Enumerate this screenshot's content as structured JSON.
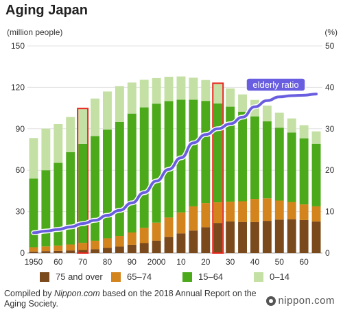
{
  "title": "Aging Japan",
  "colors": {
    "age_75_over": "#7a4a1c",
    "age_65_74": "#d4841c",
    "age_15_64": "#4caa1a",
    "age_0_14": "#c4e0a4",
    "elderly_line": "#6a5ee0",
    "highlight_box": "#e8241c",
    "grid": "#e0e0e0"
  },
  "chart_data": {
    "type": "bar",
    "stacked": true,
    "left_axis_unit": "(million people)",
    "right_axis_unit": "(%)",
    "ylim": [
      0,
      150
    ],
    "y2lim": [
      0,
      50
    ],
    "yticks": [
      "0",
      "30",
      "60",
      "90",
      "120",
      "150"
    ],
    "y2ticks": [
      "0",
      "10",
      "20",
      "30",
      "40",
      "50"
    ],
    "xticks": [
      "1950",
      "60",
      "70",
      "80",
      "90",
      "2000",
      "10",
      "20",
      "30",
      "40",
      "50",
      "60"
    ],
    "grid": true,
    "categories": [
      1950,
      1955,
      1960,
      1965,
      1970,
      1975,
      1980,
      1985,
      1990,
      1995,
      2000,
      2005,
      2010,
      2015,
      2020,
      2025,
      2030,
      2035,
      2040,
      2045,
      2050,
      2055,
      2060,
      2065
    ],
    "series": [
      {
        "name": "75 and over",
        "values": [
          1.1,
          1.4,
          1.6,
          1.9,
          2.2,
          2.8,
          3.7,
          4.7,
          6.0,
          7.2,
          9.0,
          11.6,
          14.2,
          16.3,
          18.7,
          21.8,
          22.9,
          22.5,
          22.4,
          23.3,
          24.2,
          24.5,
          23.9,
          22.8
        ]
      },
      {
        "name": "65–74",
        "values": [
          3.1,
          3.4,
          3.7,
          4.3,
          5.2,
          6.1,
          7.0,
          7.7,
          8.9,
          11.1,
          13.0,
          14.1,
          15.2,
          17.5,
          17.5,
          14.9,
          14.3,
          15.0,
          16.8,
          16.3,
          13.8,
          12.5,
          11.3,
          11.0
        ]
      },
      {
        "name": "15–64",
        "values": [
          49.7,
          55.2,
          60.0,
          66.9,
          71.6,
          75.8,
          78.8,
          82.5,
          86.1,
          87.2,
          86.2,
          84.4,
          81.7,
          77.3,
          74.0,
          71.7,
          68.8,
          64.9,
          59.8,
          55.8,
          52.8,
          50.3,
          47.9,
          45.3
        ]
      },
      {
        "name": "0–14",
        "values": [
          29.4,
          30.1,
          28.1,
          25.4,
          25.2,
          27.2,
          27.5,
          26.0,
          22.5,
          20.0,
          18.5,
          17.6,
          16.8,
          15.9,
          15.1,
          14.1,
          13.2,
          12.5,
          11.9,
          11.4,
          10.8,
          10.2,
          9.5,
          9.0
        ]
      }
    ],
    "elderly_ratio": {
      "name": "elderly ratio",
      "x": [
        1950,
        1955,
        1960,
        1965,
        1970,
        1975,
        1980,
        1985,
        1990,
        1995,
        2000,
        2005,
        2010,
        2015,
        2020,
        2025,
        2030,
        2035,
        2040,
        2045,
        2050,
        2055,
        2060,
        2065
      ],
      "values": [
        4.9,
        5.3,
        5.7,
        6.3,
        7.1,
        7.9,
        9.1,
        10.3,
        12.1,
        14.6,
        17.4,
        20.2,
        23.0,
        26.6,
        28.6,
        30.0,
        31.2,
        32.8,
        35.3,
        36.8,
        37.7,
        38.0,
        38.1,
        38.4
      ]
    },
    "highlighted_years": [
      1970,
      2025
    ],
    "legend": [
      "75 and over",
      "65–74",
      "15–64",
      "0–14"
    ],
    "legend_position": "bottom"
  },
  "source_text": {
    "prefix": "Compiled by ",
    "site": "Nippon.com",
    "suffix": " based on the 2018 Annual Report on the Aging Society."
  },
  "logo": "nippon.com"
}
